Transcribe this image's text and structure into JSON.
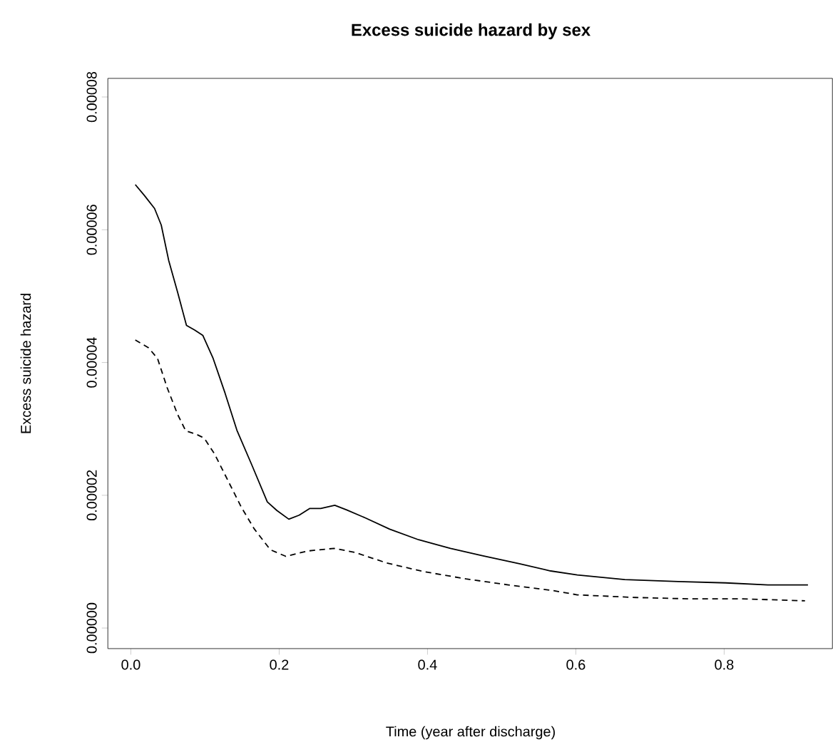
{
  "chart_data": {
    "type": "line",
    "title": "Excess suicide hazard by sex",
    "xlabel": "Time (year after discharge)",
    "ylabel": "Excess suicide hazard",
    "xlim": [
      -0.031,
      0.946
    ],
    "ylim": [
      -3.1e-06,
      8.28e-05
    ],
    "xticks": [
      {
        "value": 0,
        "label": "0.0"
      },
      {
        "value": 0.2,
        "label": "0.2"
      },
      {
        "value": 0.4,
        "label": "0.4"
      },
      {
        "value": 0.6,
        "label": "0.6"
      },
      {
        "value": 0.8,
        "label": "0.8"
      }
    ],
    "yticks": [
      {
        "value": 0,
        "label": "0.00000"
      },
      {
        "value": 2e-05,
        "label": "0.00002"
      },
      {
        "value": 4e-05,
        "label": "0.00004"
      },
      {
        "value": 6e-05,
        "label": "0.00006"
      },
      {
        "value": 8e-05,
        "label": "0.00008"
      }
    ],
    "grid": false,
    "marker": "none",
    "series": [
      {
        "color": "#000000",
        "line_style": "solid",
        "x": [
          0.006,
          0.018,
          0.032,
          0.041,
          0.051,
          0.063,
          0.075,
          0.086,
          0.097,
          0.111,
          0.127,
          0.143,
          0.163,
          0.184,
          0.197,
          0.213,
          0.227,
          0.241,
          0.256,
          0.275,
          0.291,
          0.316,
          0.349,
          0.388,
          0.431,
          0.474,
          0.524,
          0.566,
          0.602,
          0.666,
          0.738,
          0.802,
          0.859,
          0.913
        ],
        "values": [
          6.68e-05,
          6.52e-05,
          6.32e-05,
          6.07e-05,
          5.54e-05,
          5.06e-05,
          4.56e-05,
          4.49e-05,
          4.41e-05,
          4.06e-05,
          3.54e-05,
          2.98e-05,
          2.46e-05,
          1.9e-05,
          1.77e-05,
          1.64e-05,
          1.7e-05,
          1.8e-05,
          1.8e-05,
          1.85e-05,
          1.78e-05,
          1.66e-05,
          1.49e-05,
          1.33e-05,
          1.2e-05,
          1.09e-05,
          9.7e-06,
          8.6e-06,
          8e-06,
          7.3e-06,
          7e-06,
          6.8e-06,
          6.5e-06,
          6.5e-06
        ]
      },
      {
        "color": "#000000",
        "line_style": "dashed",
        "x": [
          0.006,
          0.024,
          0.036,
          0.049,
          0.063,
          0.074,
          0.088,
          0.099,
          0.113,
          0.131,
          0.149,
          0.166,
          0.188,
          0.209,
          0.238,
          0.274,
          0.302,
          0.345,
          0.395,
          0.452,
          0.509,
          0.566,
          0.602,
          0.681,
          0.752,
          0.824,
          0.909
        ],
        "values": [
          4.34e-05,
          4.22e-05,
          4.06e-05,
          3.62e-05,
          3.22e-05,
          2.97e-05,
          2.92e-05,
          2.86e-05,
          2.62e-05,
          2.22e-05,
          1.82e-05,
          1.5e-05,
          1.18e-05,
          1.08e-05,
          1.16e-05,
          1.2e-05,
          1.14e-05,
          9.8e-06,
          8.5e-06,
          7.4e-06,
          6.5e-06,
          5.7e-06,
          5e-06,
          4.6e-06,
          4.4e-06,
          4.4e-06,
          4.1e-06
        ]
      }
    ]
  }
}
